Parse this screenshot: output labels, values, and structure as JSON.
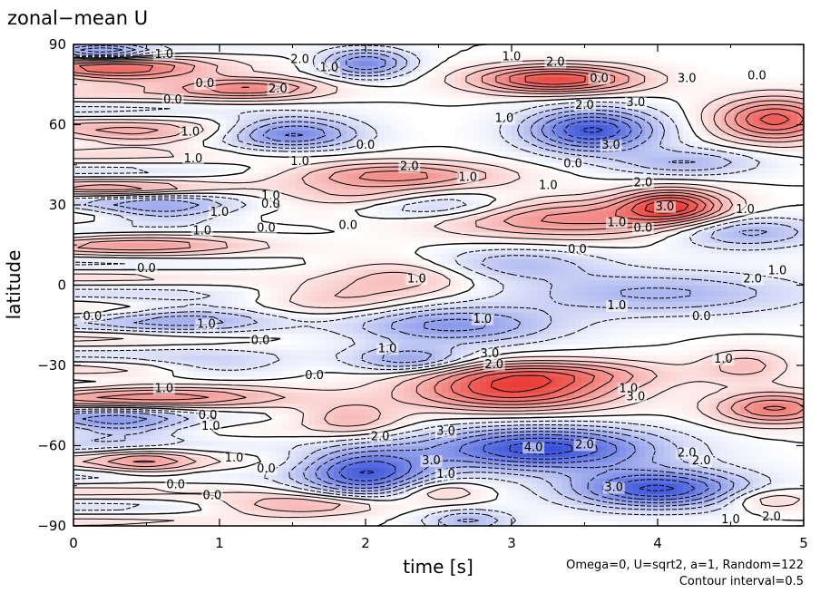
{
  "chart_data": {
    "type": "heatmap",
    "title": "zonal−mean U",
    "xlabel": "time [s]",
    "ylabel": "latitude",
    "xlim": [
      0,
      5
    ],
    "ylim": [
      -90,
      90
    ],
    "x_ticks": [
      0,
      1,
      2,
      3,
      4,
      5
    ],
    "x_tick_labels": [
      "0",
      "1",
      "2",
      "3",
      "4",
      "5"
    ],
    "y_ticks": [
      90,
      60,
      30,
      0,
      -30,
      -60,
      -90
    ],
    "y_tick_labels": [
      "90",
      "60",
      "30",
      "0",
      "−30",
      "−60",
      "−90"
    ],
    "annotations": [
      "Omega=0, U=sqrt2, a=1, Random=122",
      "Contour interval=0.5"
    ],
    "contour_interval": 0.5,
    "colors": {
      "positive": "#e8241c",
      "negative": "#1f3bd6",
      "zero": "#ffffff"
    },
    "grid": false,
    "contour_labels": [
      {
        "text": "1.0",
        "t": 0.62,
        "lat": 85
      },
      {
        "text": "2.0",
        "t": 1.55,
        "lat": 83
      },
      {
        "text": "1.0",
        "t": 1.75,
        "lat": 80
      },
      {
        "text": "0.0",
        "t": 0.9,
        "lat": 74
      },
      {
        "text": "2.0",
        "t": 1.4,
        "lat": 72
      },
      {
        "text": "0.0",
        "t": 0.68,
        "lat": 68
      },
      {
        "text": "1.0",
        "t": 0.8,
        "lat": 56
      },
      {
        "text": "1.0",
        "t": 0.82,
        "lat": 46
      },
      {
        "text": "0.0",
        "t": 2.0,
        "lat": 51
      },
      {
        "text": "1.0",
        "t": 1.55,
        "lat": 45
      },
      {
        "text": "2.0",
        "t": 2.3,
        "lat": 43
      },
      {
        "text": "1.0",
        "t": 2.7,
        "lat": 39
      },
      {
        "text": "1.0",
        "t": 1.35,
        "lat": 32
      },
      {
        "text": "0.0",
        "t": 1.35,
        "lat": 29
      },
      {
        "text": "1.0",
        "t": 1.0,
        "lat": 26
      },
      {
        "text": "1.0",
        "t": 0.88,
        "lat": 19
      },
      {
        "text": "0.0",
        "t": 1.32,
        "lat": 20
      },
      {
        "text": "0.0",
        "t": 1.88,
        "lat": 21
      },
      {
        "text": "0.0",
        "t": 0.5,
        "lat": 5
      },
      {
        "text": "1.0",
        "t": 2.35,
        "lat": 1
      },
      {
        "text": "0.0",
        "t": 0.13,
        "lat": -13
      },
      {
        "text": "1.0",
        "t": 0.91,
        "lat": -16
      },
      {
        "text": "0.0",
        "t": 1.28,
        "lat": -22
      },
      {
        "text": "1.0",
        "t": 2.15,
        "lat": -25
      },
      {
        "text": "1.0",
        "t": 2.8,
        "lat": -14
      },
      {
        "text": "0.0",
        "t": 1.65,
        "lat": -35
      },
      {
        "text": "1.0",
        "t": 0.62,
        "lat": -40
      },
      {
        "text": "3.0",
        "t": 2.85,
        "lat": -27
      },
      {
        "text": "2.0",
        "t": 2.88,
        "lat": -31
      },
      {
        "text": "1.0",
        "t": 3.8,
        "lat": -40
      },
      {
        "text": "3.0",
        "t": 3.85,
        "lat": -43
      },
      {
        "text": "0.0",
        "t": 0.92,
        "lat": -50
      },
      {
        "text": "1.0",
        "t": 0.94,
        "lat": -54
      },
      {
        "text": "2.0",
        "t": 2.1,
        "lat": -58
      },
      {
        "text": "3.0",
        "t": 2.55,
        "lat": -56
      },
      {
        "text": "4.0",
        "t": 3.15,
        "lat": -62
      },
      {
        "text": "2.0",
        "t": 3.5,
        "lat": -61
      },
      {
        "text": "3.0",
        "t": 2.45,
        "lat": -67
      },
      {
        "text": "1.0",
        "t": 1.1,
        "lat": -66
      },
      {
        "text": "0.0",
        "t": 1.32,
        "lat": -70
      },
      {
        "text": "1.0",
        "t": 2.55,
        "lat": -72
      },
      {
        "text": "2.0",
        "t": 4.2,
        "lat": -64
      },
      {
        "text": "2.0",
        "t": 4.3,
        "lat": -67
      },
      {
        "text": "0.0",
        "t": 0.7,
        "lat": -76
      },
      {
        "text": "0.0",
        "t": 0.95,
        "lat": -80
      },
      {
        "text": "3.0",
        "t": 3.7,
        "lat": -77
      },
      {
        "text": "1.0",
        "t": 4.5,
        "lat": -89
      },
      {
        "text": "2.0",
        "t": 4.78,
        "lat": -88
      },
      {
        "text": "1.0",
        "t": 4.6,
        "lat": 27
      },
      {
        "text": "2.0",
        "t": 3.5,
        "lat": 66
      },
      {
        "text": "3.0",
        "t": 3.68,
        "lat": 51
      },
      {
        "text": "0.0",
        "t": 3.42,
        "lat": 44
      },
      {
        "text": "1.0",
        "t": 3.25,
        "lat": 36
      },
      {
        "text": "1.0",
        "t": 2.95,
        "lat": 61
      },
      {
        "text": "2.0",
        "t": 3.9,
        "lat": 37
      },
      {
        "text": "3.0",
        "t": 4.05,
        "lat": 28
      },
      {
        "text": "1.0",
        "t": 3.72,
        "lat": 22
      },
      {
        "text": "0.0",
        "t": 3.9,
        "lat": 20
      },
      {
        "text": "0.0",
        "t": 3.45,
        "lat": 12
      },
      {
        "text": "1.0",
        "t": 3.72,
        "lat": -9
      },
      {
        "text": "0.0",
        "t": 4.3,
        "lat": -13
      },
      {
        "text": "2.0",
        "t": 4.65,
        "lat": 1
      },
      {
        "text": "1.0",
        "t": 4.82,
        "lat": 4
      },
      {
        "text": "1.0",
        "t": 4.45,
        "lat": -29
      },
      {
        "text": "1.0",
        "t": 3.0,
        "lat": 84
      },
      {
        "text": "2.0",
        "t": 3.3,
        "lat": 82
      },
      {
        "text": "0.0",
        "t": 3.6,
        "lat": 76
      },
      {
        "text": "3.0",
        "t": 4.2,
        "lat": 76
      },
      {
        "text": "3.0",
        "t": 3.85,
        "lat": 67
      },
      {
        "text": "0.0",
        "t": 4.68,
        "lat": 77
      }
    ]
  }
}
